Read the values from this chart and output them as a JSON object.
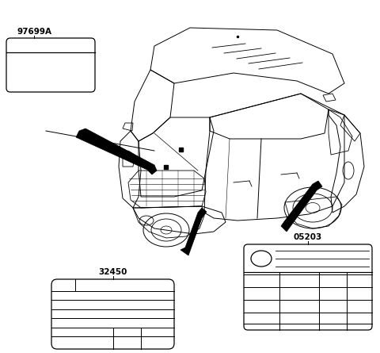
{
  "bg_color": "#ffffff",
  "line_color": "#000000",
  "label_97699A": "97699A",
  "label_32450": "32450",
  "label_05203": "05203",
  "lw_main": 0.9,
  "lw_car": 0.7,
  "font_size_label": 7.5
}
